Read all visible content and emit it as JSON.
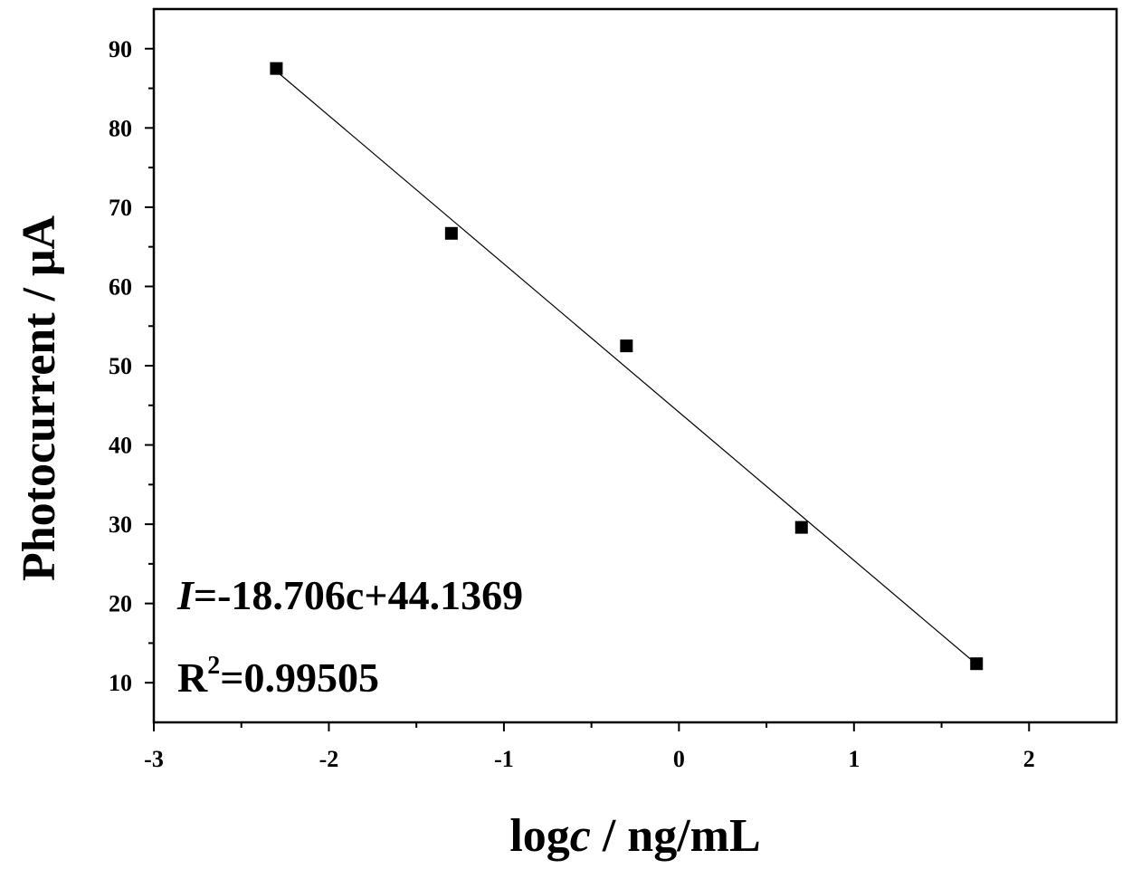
{
  "chart_data": {
    "type": "scatter",
    "xlabel_main": "log",
    "xlabel_var": "c",
    "xlabel_unit": " / ng/mL",
    "ylabel": "Photocurrent / μA",
    "xlim": [
      -3,
      2.5
    ],
    "ylim": [
      5,
      95
    ],
    "xticks": [
      -3,
      -2,
      -1,
      0,
      1,
      2
    ],
    "xtick_labels": [
      "-3",
      "-2",
      "-1",
      "0",
      "1",
      "2"
    ],
    "yticks": [
      10,
      20,
      30,
      40,
      50,
      60,
      70,
      80,
      90
    ],
    "ytick_labels": [
      "10",
      "20",
      "30",
      "40",
      "50",
      "60",
      "70",
      "80",
      "90"
    ],
    "points": [
      {
        "x": -2.3,
        "y": 87.5
      },
      {
        "x": -1.3,
        "y": 66.7
      },
      {
        "x": -0.3,
        "y": 52.5
      },
      {
        "x": 0.7,
        "y": 29.6
      },
      {
        "x": 1.7,
        "y": 12.4
      }
    ],
    "fit_line": {
      "slope": -18.706,
      "intercept": 44.1369,
      "x_range": [
        -2.3,
        1.7
      ]
    },
    "equation_var": "I",
    "equation_rest": "=-18.706c+44.1369",
    "r2_base": "R",
    "r2_sup": "2",
    "r2_value": "=0.99505",
    "grid": false
  }
}
